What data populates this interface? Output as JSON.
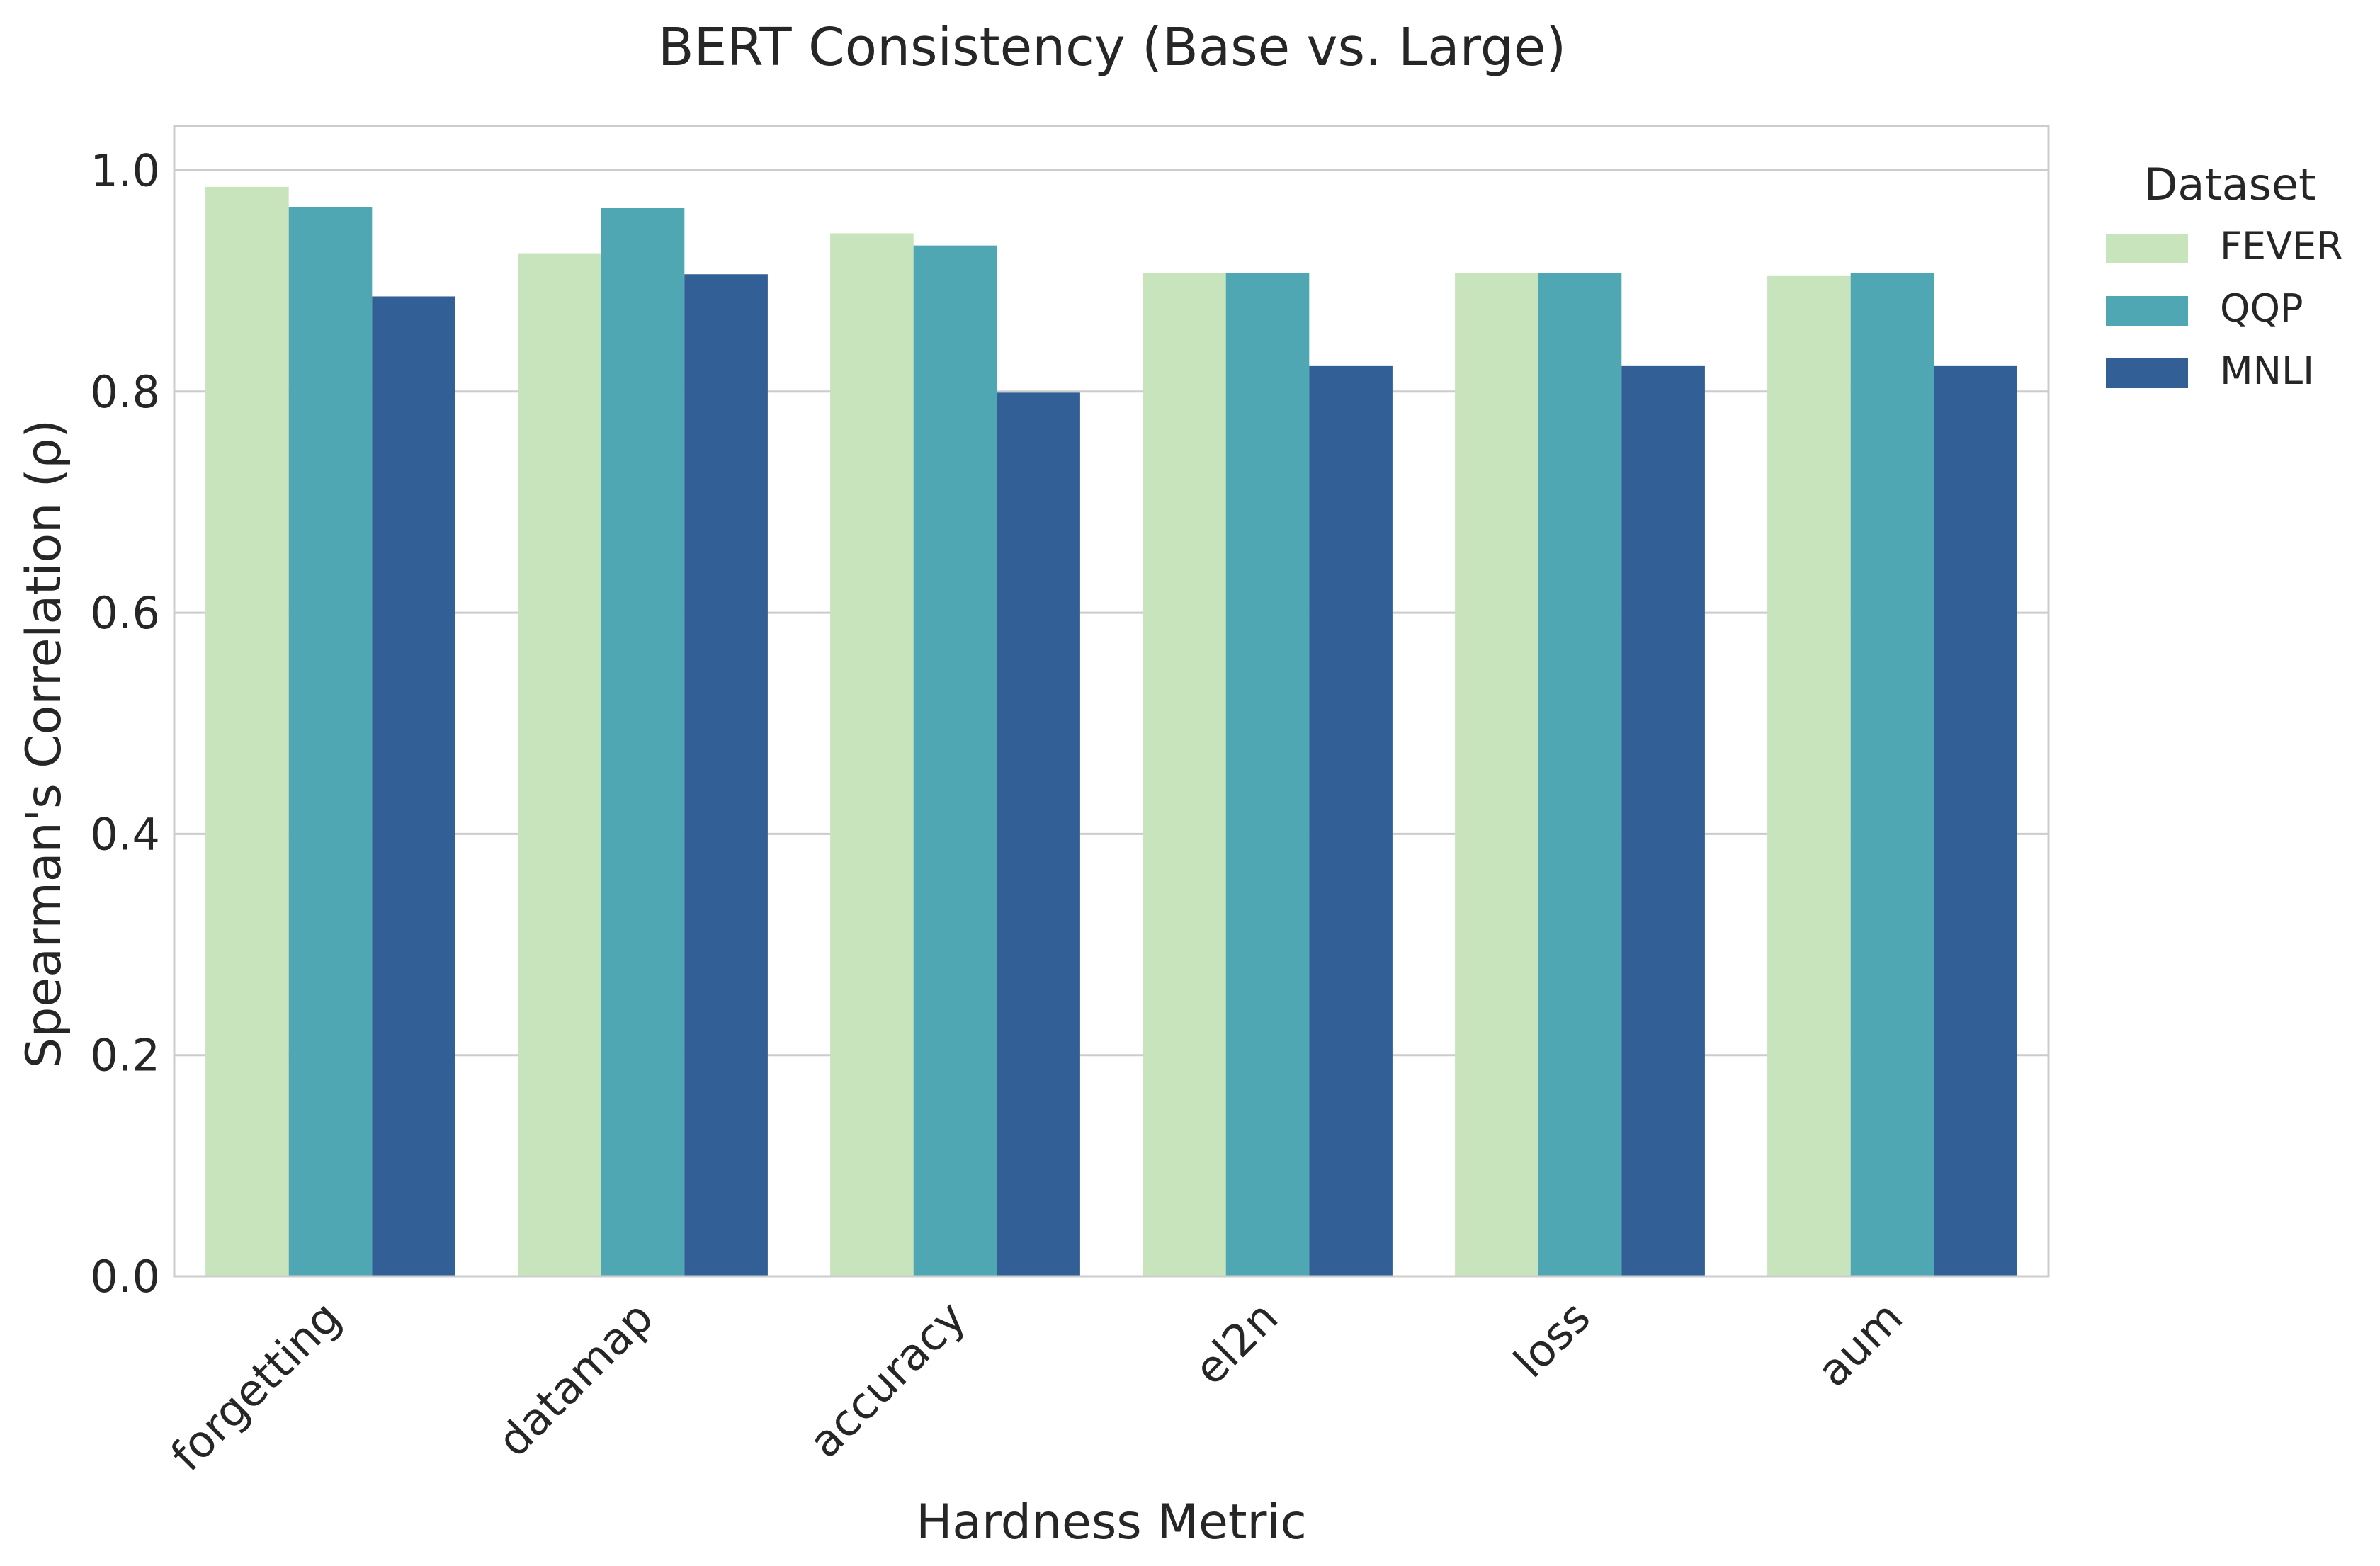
{
  "chart_data": {
    "type": "bar",
    "title": "BERT Consistency (Base vs. Large)",
    "xlabel": "Hardness Metric",
    "ylabel": "Spearman's Correlation (ρ)",
    "ylim": [
      0,
      1.04
    ],
    "yticks": [
      0.0,
      0.2,
      0.4,
      0.6,
      0.8,
      1.0
    ],
    "ytick_labels": [
      "0.0",
      "0.2",
      "0.4",
      "0.6",
      "0.8",
      "1.0"
    ],
    "grid": "horizontal",
    "categories": [
      "forgetting",
      "datamap",
      "accuracy",
      "el2n",
      "loss",
      "aum"
    ],
    "legend": {
      "title": "Dataset",
      "placement": "right, outside plot, top"
    },
    "series": [
      {
        "name": "FEVER",
        "color": "#c7e4bd",
        "values": [
          0.985,
          0.925,
          0.943,
          0.907,
          0.907,
          0.905
        ]
      },
      {
        "name": "QQP",
        "color": "#4fa7b4",
        "values": [
          0.967,
          0.966,
          0.932,
          0.907,
          0.907,
          0.907
        ]
      },
      {
        "name": "MNLI",
        "color": "#315f96",
        "values": [
          0.886,
          0.906,
          0.799,
          0.823,
          0.823,
          0.823
        ]
      }
    ]
  }
}
